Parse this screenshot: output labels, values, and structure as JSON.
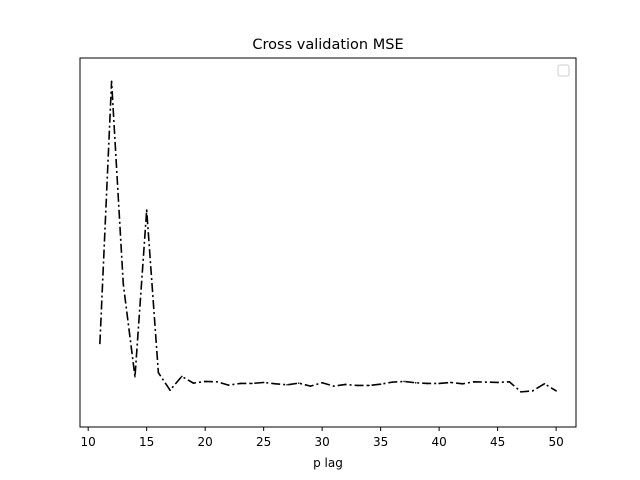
{
  "chart_data": {
    "type": "line",
    "title": "Cross validation MSE",
    "xlabel": "p lag",
    "ylabel": "",
    "xlim": [
      9.3,
      51.7
    ],
    "ylim": [
      0.0,
      1.0
    ],
    "y_ticks_shown": false,
    "x_ticks": [
      10,
      15,
      20,
      25,
      30,
      35,
      40,
      45,
      50
    ],
    "x_tick_labels": [
      "10",
      "15",
      "20",
      "25",
      "30",
      "35",
      "40",
      "45",
      "50"
    ],
    "grid": false,
    "legend": {
      "placement": "top-right",
      "entries": []
    },
    "series": [
      {
        "line_style": "dash-dot",
        "color": "#000000",
        "x": [
          11,
          12,
          13,
          14,
          15,
          16,
          17,
          18,
          19,
          20,
          21,
          22,
          23,
          24,
          25,
          26,
          27,
          28,
          29,
          30,
          31,
          32,
          33,
          34,
          35,
          36,
          37,
          38,
          39,
          40,
          41,
          42,
          43,
          44,
          45,
          46,
          47,
          48,
          49,
          50
        ],
        "y": [
          0.195,
          0.975,
          0.372,
          0.096,
          0.592,
          0.108,
          0.056,
          0.097,
          0.077,
          0.082,
          0.081,
          0.071,
          0.076,
          0.076,
          0.079,
          0.075,
          0.072,
          0.077,
          0.068,
          0.078,
          0.068,
          0.073,
          0.07,
          0.07,
          0.074,
          0.08,
          0.082,
          0.078,
          0.076,
          0.076,
          0.079,
          0.075,
          0.081,
          0.08,
          0.079,
          0.081,
          0.051,
          0.054,
          0.075,
          0.054
        ]
      }
    ]
  },
  "colors": {
    "line": "#000000",
    "axes": "#000000",
    "background": "#ffffff"
  }
}
